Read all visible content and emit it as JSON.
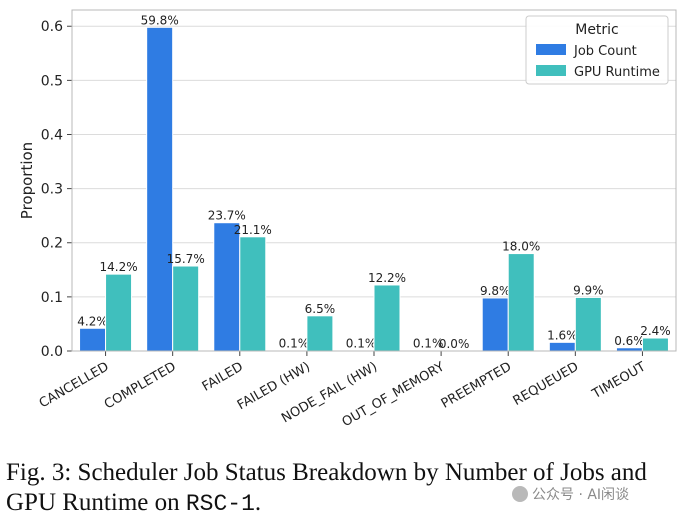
{
  "chart_data": {
    "type": "bar",
    "ylabel": "Proportion",
    "xlabel": "",
    "ylim": [
      0,
      0.63
    ],
    "yticks": [
      0.0,
      0.1,
      0.2,
      0.3,
      0.4,
      0.5,
      0.6
    ],
    "ytick_labels": [
      "0.0",
      "0.1",
      "0.2",
      "0.3",
      "0.4",
      "0.5",
      "0.6"
    ],
    "grid": true,
    "legend": {
      "title": "Metric",
      "position": "top-right"
    },
    "categories": [
      "CANCELLED",
      "COMPLETED",
      "FAILED",
      "FAILED (HW)",
      "NODE_FAIL (HW)",
      "OUT_OF_MEMORY",
      "PREEMPTED",
      "REQUEUED",
      "TIMEOUT"
    ],
    "series": [
      {
        "name": "Job Count",
        "color": "#2f7ce3",
        "values": [
          0.042,
          0.598,
          0.237,
          0.001,
          0.001,
          0.001,
          0.098,
          0.016,
          0.006
        ],
        "labels": [
          "4.2%",
          "59.8%",
          "23.7%",
          "0.1%",
          "0.1%",
          "0.1%",
          "9.8%",
          "1.6%",
          "0.6%"
        ]
      },
      {
        "name": "GPU Runtime",
        "color": "#40bfbd",
        "values": [
          0.142,
          0.157,
          0.211,
          0.065,
          0.122,
          0.0,
          0.18,
          0.099,
          0.024
        ],
        "labels": [
          "14.2%",
          "15.7%",
          "21.1%",
          "6.5%",
          "12.2%",
          "0.0%",
          "18.0%",
          "9.9%",
          "2.4%"
        ]
      }
    ]
  },
  "caption": {
    "text": "Fig. 3: Scheduler Job Status Breakdown by Number of Jobs and GPU Runtime on ",
    "code": "RSC-1",
    "end": "."
  },
  "watermark": {
    "text": "公众号 · AI闲谈"
  }
}
